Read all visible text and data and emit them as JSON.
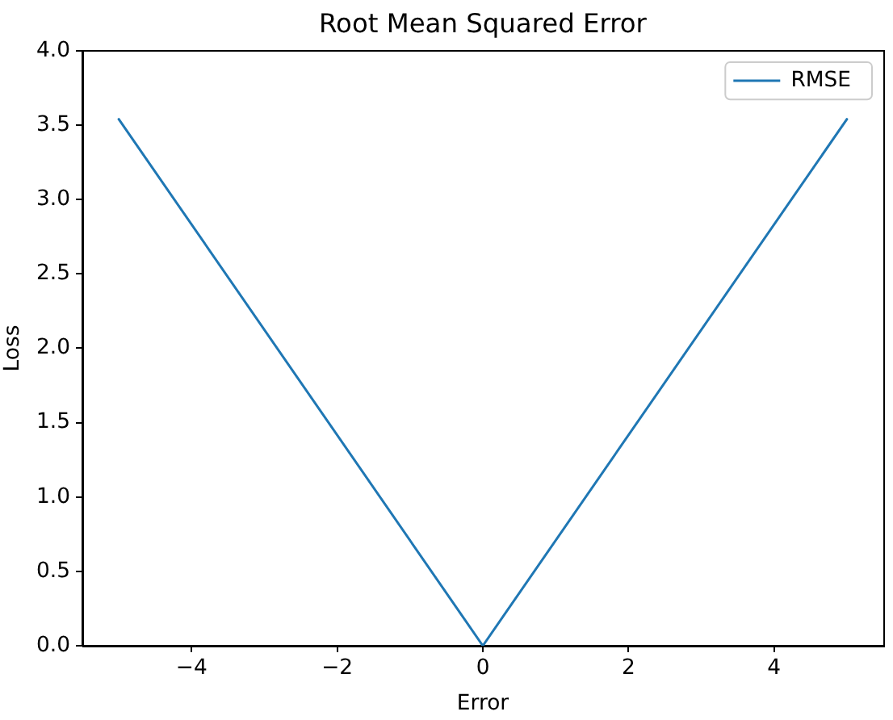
{
  "chart_data": {
    "type": "line",
    "title": "Root Mean Squared Error",
    "xlabel": "Error",
    "ylabel": "Loss",
    "x": [
      -5,
      0,
      5
    ],
    "series": [
      {
        "name": "RMSE",
        "color": "#1f77b4",
        "values": [
          3.54,
          0,
          3.54
        ]
      }
    ],
    "xlim": [
      -5.5,
      5.5
    ],
    "xticks": [
      {
        "value": -4,
        "label": "−4"
      },
      {
        "value": -2,
        "label": "−2"
      },
      0,
      2,
      4
    ],
    "ylim": [
      0,
      4
    ],
    "yticks": [
      {
        "value": 0,
        "label": "0.0"
      },
      {
        "value": 0.5,
        "label": "0.5"
      },
      {
        "value": 1,
        "label": "1.0"
      },
      {
        "value": 1.5,
        "label": "1.5"
      },
      {
        "value": 2,
        "label": "2.0"
      },
      {
        "value": 2.5,
        "label": "2.5"
      },
      {
        "value": 3,
        "label": "3.0"
      },
      {
        "value": 3.5,
        "label": "3.5"
      },
      {
        "value": 4,
        "label": "4.0"
      }
    ],
    "grid": false,
    "legend": "top right",
    "marker": "none",
    "line_style": "solid"
  }
}
